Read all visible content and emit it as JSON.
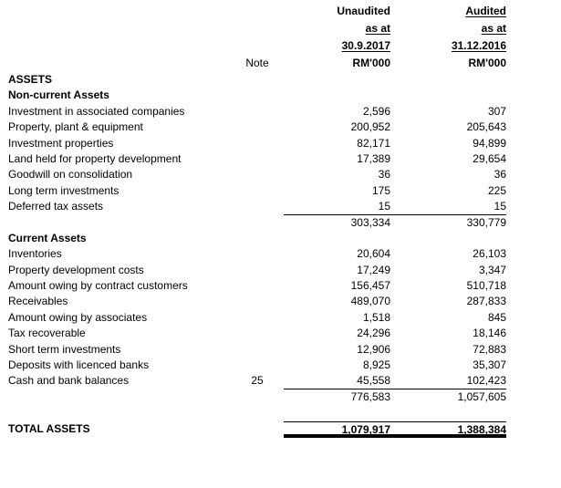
{
  "colors": {
    "background": "#ffffff",
    "text": "#000000",
    "rule": "#000000"
  },
  "document": {
    "header": {
      "note_label": "Note",
      "columns": [
        {
          "qualifier": "Unaudited",
          "as_at_label": "as at",
          "date": "30.9.2017",
          "currency_unit": "RM'000"
        },
        {
          "qualifier": "Audited",
          "as_at_label": "as at",
          "date": "31.12.2016",
          "currency_unit": "RM'000"
        }
      ]
    },
    "assets_heading": "ASSETS",
    "non_current_assets": {
      "heading": "Non-current Assets",
      "rows": [
        {
          "label": "Investment in associated companies",
          "note": "",
          "v1": "2,596",
          "v2": "307"
        },
        {
          "label": "Property, plant & equipment",
          "note": "",
          "v1": "200,952",
          "v2": "205,643"
        },
        {
          "label": "Investment properties",
          "note": "",
          "v1": "82,171",
          "v2": "94,899"
        },
        {
          "label": "Land held for property development",
          "note": "",
          "v1": "17,389",
          "v2": "29,654"
        },
        {
          "label": "Goodwill on consolidation",
          "note": "",
          "v1": "36",
          "v2": "36"
        },
        {
          "label": "Long term investments",
          "note": "",
          "v1": "175",
          "v2": "225"
        },
        {
          "label": "Deferred tax assets",
          "note": "",
          "v1": "15",
          "v2": "15"
        }
      ],
      "subtotal": {
        "v1": "303,334",
        "v2": "330,779"
      }
    },
    "current_assets": {
      "heading": "Current Assets",
      "rows": [
        {
          "label": "Inventories",
          "note": "",
          "v1": "20,604",
          "v2": "26,103"
        },
        {
          "label": "Property development costs",
          "note": "",
          "v1": "17,249",
          "v2": "3,347"
        },
        {
          "label": "Amount owing by contract customers",
          "note": "",
          "v1": "156,457",
          "v2": "510,718"
        },
        {
          "label": "Receivables",
          "note": "",
          "v1": "489,070",
          "v2": "287,833"
        },
        {
          "label": "Amount owing by associates",
          "note": "",
          "v1": "1,518",
          "v2": "845"
        },
        {
          "label": "Tax recoverable",
          "note": "",
          "v1": "24,296",
          "v2": "18,146"
        },
        {
          "label": "Short term investments",
          "note": "",
          "v1": "12,906",
          "v2": "72,883"
        },
        {
          "label": "Deposits with licenced banks",
          "note": "",
          "v1": "8,925",
          "v2": "35,307"
        },
        {
          "label": "Cash and bank balances",
          "note": "25",
          "v1": "45,558",
          "v2": "102,423"
        }
      ],
      "subtotal": {
        "v1": "776,583",
        "v2": "1,057,605"
      }
    },
    "total_assets": {
      "label": "TOTAL ASSETS",
      "v1": "1,079,917",
      "v2": "1,388,384"
    }
  }
}
